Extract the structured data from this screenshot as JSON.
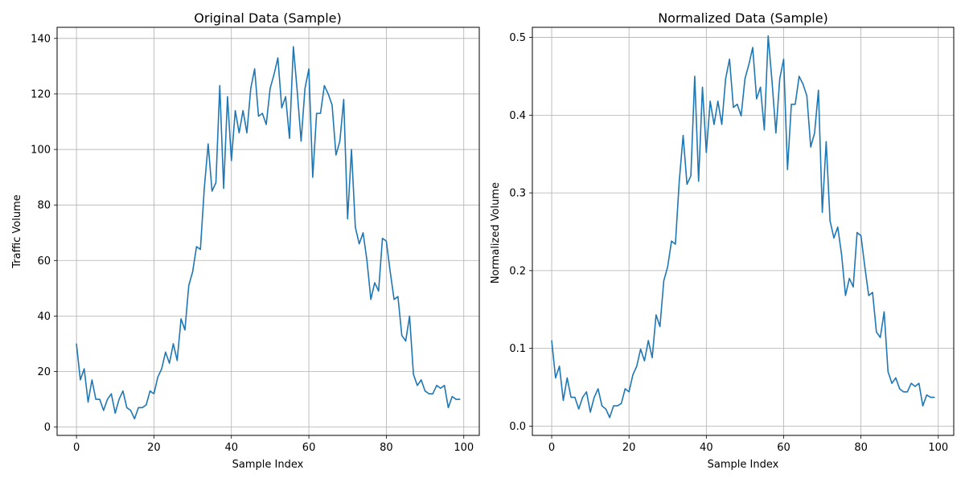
{
  "chart_data": [
    {
      "type": "line",
      "title": "Original Data (Sample)",
      "xlabel": "Sample Index",
      "ylabel": "Traffic Volume",
      "xlim": [
        -5,
        104
      ],
      "ylim": [
        -3,
        144
      ],
      "xticks": [
        0,
        20,
        40,
        60,
        80,
        100
      ],
      "xtick_labels": [
        "0",
        "20",
        "40",
        "60",
        "80",
        "100"
      ],
      "yticks": [
        0,
        20,
        40,
        60,
        80,
        100,
        120,
        140
      ],
      "ytick_labels": [
        "0",
        "20",
        "40",
        "60",
        "80",
        "100",
        "120",
        "140"
      ],
      "grid": true,
      "series": [
        {
          "color": "#1f77b4",
          "x": [
            0,
            1,
            2,
            3,
            4,
            5,
            6,
            7,
            8,
            9,
            10,
            11,
            12,
            13,
            14,
            15,
            16,
            17,
            18,
            19,
            20,
            21,
            22,
            23,
            24,
            25,
            26,
            27,
            28,
            29,
            30,
            31,
            32,
            33,
            34,
            35,
            36,
            37,
            38,
            39,
            40,
            41,
            42,
            43,
            44,
            45,
            46,
            47,
            48,
            49,
            50,
            51,
            52,
            53,
            54,
            55,
            56,
            57,
            58,
            59,
            60,
            61,
            62,
            63,
            64,
            65,
            66,
            67,
            68,
            69,
            70,
            71,
            72,
            73,
            74,
            75,
            76,
            77,
            78,
            79,
            80,
            81,
            82,
            83,
            84,
            85,
            86,
            87,
            88,
            89,
            90,
            91,
            92,
            93,
            94,
            95,
            96,
            97,
            98,
            99
          ],
          "values": [
            30,
            17,
            21,
            9,
            17,
            10,
            10,
            6,
            10,
            12,
            5,
            10,
            13,
            7,
            6,
            3,
            7,
            7,
            8,
            13,
            12,
            18,
            21,
            27,
            23,
            30,
            24,
            39,
            35,
            51,
            56,
            65,
            64,
            86,
            102,
            85,
            88,
            123,
            86,
            119,
            96,
            114,
            106,
            114,
            106,
            122,
            129,
            112,
            113,
            109,
            122,
            127,
            133,
            115,
            119,
            104,
            137,
            121,
            103,
            122,
            129,
            90,
            113,
            113,
            123,
            120,
            116,
            98,
            103,
            118,
            75,
            100,
            72,
            66,
            70,
            60,
            46,
            52,
            49,
            68,
            67,
            56,
            46,
            47,
            33,
            31,
            40,
            19,
            15,
            17,
            13,
            12,
            12,
            15,
            14,
            15,
            7,
            11,
            10,
            10
          ]
        }
      ]
    },
    {
      "type": "line",
      "title": "Normalized Data (Sample)",
      "xlabel": "Sample Index",
      "ylabel": "Normalized Volume",
      "xlim": [
        -5,
        104
      ],
      "ylim": [
        -0.012,
        0.513
      ],
      "xticks": [
        0,
        20,
        40,
        60,
        80,
        100
      ],
      "xtick_labels": [
        "0",
        "20",
        "40",
        "60",
        "80",
        "100"
      ],
      "yticks": [
        0,
        0.1,
        0.2,
        0.3,
        0.4,
        0.5
      ],
      "ytick_labels": [
        "0.0",
        "0.1",
        "0.2",
        "0.3",
        "0.4",
        "0.5"
      ],
      "grid": true,
      "series": [
        {
          "color": "#1f77b4",
          "x": [
            0,
            1,
            2,
            3,
            4,
            5,
            6,
            7,
            8,
            9,
            10,
            11,
            12,
            13,
            14,
            15,
            16,
            17,
            18,
            19,
            20,
            21,
            22,
            23,
            24,
            25,
            26,
            27,
            28,
            29,
            30,
            31,
            32,
            33,
            34,
            35,
            36,
            37,
            38,
            39,
            40,
            41,
            42,
            43,
            44,
            45,
            46,
            47,
            48,
            49,
            50,
            51,
            52,
            53,
            54,
            55,
            56,
            57,
            58,
            59,
            60,
            61,
            62,
            63,
            64,
            65,
            66,
            67,
            68,
            69,
            70,
            71,
            72,
            73,
            74,
            75,
            76,
            77,
            78,
            79,
            80,
            81,
            82,
            83,
            84,
            85,
            86,
            87,
            88,
            89,
            90,
            91,
            92,
            93,
            94,
            95,
            96,
            97,
            98,
            99
          ],
          "values": [
            0.11,
            0.062,
            0.077,
            0.033,
            0.062,
            0.037,
            0.037,
            0.022,
            0.037,
            0.044,
            0.018,
            0.037,
            0.048,
            0.026,
            0.022,
            0.011,
            0.026,
            0.026,
            0.029,
            0.048,
            0.044,
            0.066,
            0.077,
            0.099,
            0.084,
            0.11,
            0.088,
            0.143,
            0.128,
            0.187,
            0.205,
            0.238,
            0.234,
            0.315,
            0.374,
            0.311,
            0.322,
            0.45,
            0.315,
            0.436,
            0.352,
            0.418,
            0.388,
            0.418,
            0.388,
            0.447,
            0.472,
            0.41,
            0.414,
            0.399,
            0.447,
            0.465,
            0.487,
            0.421,
            0.436,
            0.381,
            0.502,
            0.443,
            0.377,
            0.447,
            0.472,
            0.33,
            0.414,
            0.414,
            0.45,
            0.44,
            0.425,
            0.359,
            0.377,
            0.432,
            0.275,
            0.366,
            0.264,
            0.242,
            0.256,
            0.22,
            0.168,
            0.19,
            0.179,
            0.249,
            0.245,
            0.205,
            0.168,
            0.172,
            0.121,
            0.114,
            0.147,
            0.07,
            0.055,
            0.062,
            0.048,
            0.044,
            0.044,
            0.055,
            0.051,
            0.055,
            0.026,
            0.04,
            0.037,
            0.037
          ]
        }
      ]
    }
  ]
}
